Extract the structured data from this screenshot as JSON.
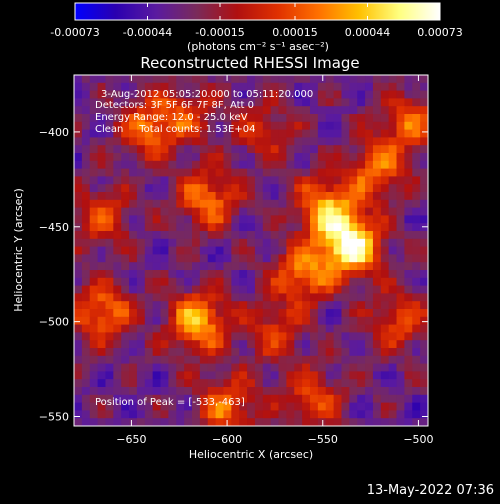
{
  "chart_data": {
    "type": "heatmap",
    "title": "Reconstructed RHESSI Image",
    "colorbar": {
      "ticks": [
        "-0.00073",
        "-0.00044",
        "-0.00015",
        "0.00015",
        "0.00044",
        "0.00073"
      ],
      "tick_values": [
        -0.00073,
        -0.00044,
        -0.00015,
        0.00015,
        0.00044,
        0.00073
      ],
      "range": [
        -0.00073,
        0.00073
      ],
      "unit_label": "(photons cm⁻² s⁻¹ asec⁻²)",
      "colors": [
        "#0000ff",
        "#2a00b0",
        "#5a1aa0",
        "#7a2a5a",
        "#b01010",
        "#e03000",
        "#ff7000",
        "#ffc000",
        "#ffff80",
        "#ffffff"
      ]
    },
    "xlabel": "Heliocentric X (arcsec)",
    "ylabel": "Heliocentric Y (arcsec)",
    "xlim": [
      -680,
      -495
    ],
    "ylim": [
      -555,
      -370
    ],
    "xticks": [
      -650,
      -600,
      -550,
      -500
    ],
    "xtick_labels": [
      "−650",
      "−600",
      "−550",
      "−500"
    ],
    "yticks": [
      -400,
      -450,
      -500,
      -550
    ],
    "ytick_labels": [
      "−400",
      "−450",
      "−500",
      "−550"
    ],
    "annotations": [
      "3-Aug-2012 05:05:20.000 to 05:11:20.000",
      "Detectors: 3F 5F 6F 7F 8F, Att 0",
      "Energy Range: 12.0 - 25.0 keV",
      "Clean     Total counts: 1.53E+04"
    ],
    "peak_label": "Position of Peak = [-533,-463]",
    "peak": [
      -533,
      -463
    ],
    "sources": [
      {
        "x": -535,
        "y": -460,
        "amp": 1.0
      },
      {
        "x": -548,
        "y": -440,
        "amp": 0.72
      },
      {
        "x": -560,
        "y": -475,
        "amp": 0.6
      },
      {
        "x": -522,
        "y": -420,
        "amp": 0.55
      },
      {
        "x": -505,
        "y": -395,
        "amp": 0.5
      },
      {
        "x": -510,
        "y": -500,
        "amp": 0.45
      },
      {
        "x": -575,
        "y": -505,
        "amp": 0.4
      },
      {
        "x": -640,
        "y": -398,
        "amp": 0.55
      },
      {
        "x": -610,
        "y": -435,
        "amp": 0.6
      },
      {
        "x": -665,
        "y": -445,
        "amp": 0.45
      },
      {
        "x": -665,
        "y": -495,
        "amp": 0.6
      },
      {
        "x": -615,
        "y": -500,
        "amp": 0.75
      },
      {
        "x": -600,
        "y": -545,
        "amp": 0.55
      },
      {
        "x": -555,
        "y": -540,
        "amp": 0.45
      },
      {
        "x": -620,
        "y": -390,
        "amp": 0.35
      },
      {
        "x": -580,
        "y": -400,
        "amp": 0.35
      }
    ]
  },
  "footer": {
    "timestamp": "13-May-2022 07:36"
  }
}
